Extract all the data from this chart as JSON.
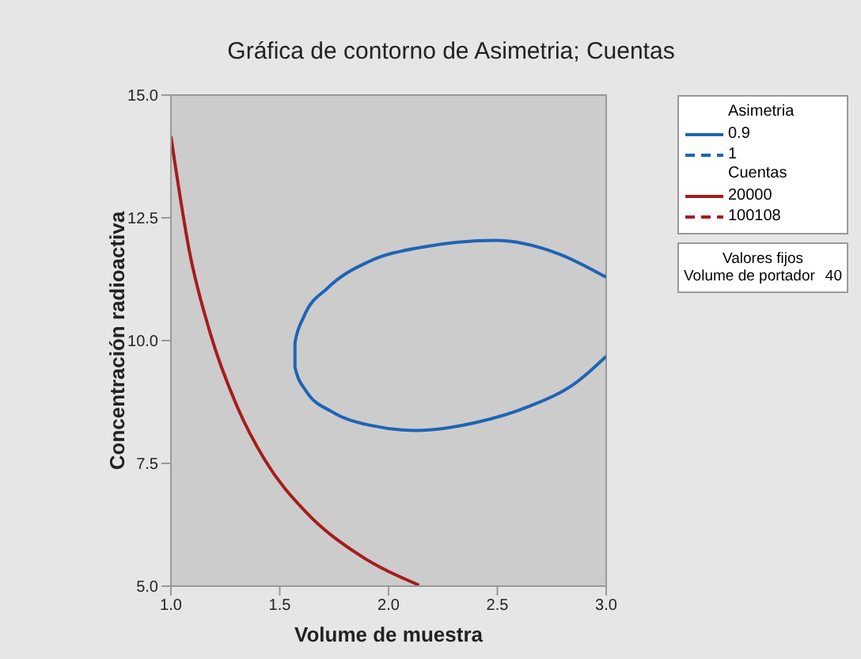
{
  "chart_data": {
    "type": "line",
    "title": "Gráfica de contorno de Asimetria; Cuentas",
    "xlabel": "Volume de muestra",
    "ylabel": "Concentración radioactiva",
    "xlim": [
      1.0,
      3.0
    ],
    "xticks": [
      {
        "value": 1,
        "label": "1.0"
      },
      1.5,
      {
        "value": 2,
        "label": "2.0"
      },
      2.5,
      {
        "value": 3,
        "label": "3.0"
      }
    ],
    "ylim": [
      5.0,
      15.0
    ],
    "yticks": [
      {
        "value": 5,
        "label": "5.0"
      },
      7.5,
      {
        "value": 10,
        "label": "10.0"
      },
      12.5,
      {
        "value": 15,
        "label": "15.0"
      }
    ],
    "legend": "top right",
    "annotations": [
      "Asimetria",
      "Cuentas",
      "Valores fijos",
      "Volume de portador",
      "40"
    ],
    "series": [
      {
        "name": "0.9",
        "color": "#1f64b4",
        "line_style": "solid",
        "x": [
          3.0,
          2.78,
          2.49,
          2.15,
          1.91,
          1.72,
          1.61,
          1.57,
          1.57,
          1.62,
          1.74,
          1.91,
          2.13,
          2.4,
          2.64,
          2.86,
          3.0
        ],
        "values": [
          11.29,
          11.77,
          12.04,
          11.9,
          11.61,
          11.07,
          10.48,
          9.95,
          9.46,
          8.98,
          8.55,
          8.28,
          8.17,
          8.33,
          8.65,
          9.14,
          9.68
        ]
      },
      {
        "name": "1",
        "color": "#1f64b4",
        "line_style": "dashed"
      },
      {
        "name": "20000",
        "color": "#a61c1c",
        "line_style": "solid",
        "x": [
          1.0,
          1.087,
          1.18,
          1.305,
          1.43,
          1.62,
          1.86,
          2.14
        ],
        "values": [
          14.16,
          11.77,
          10.16,
          8.65,
          7.58,
          6.51,
          5.65,
          5.02
        ]
      },
      {
        "name": "100108",
        "color": "#a61c1c",
        "line_style": "dashed"
      }
    ]
  }
}
